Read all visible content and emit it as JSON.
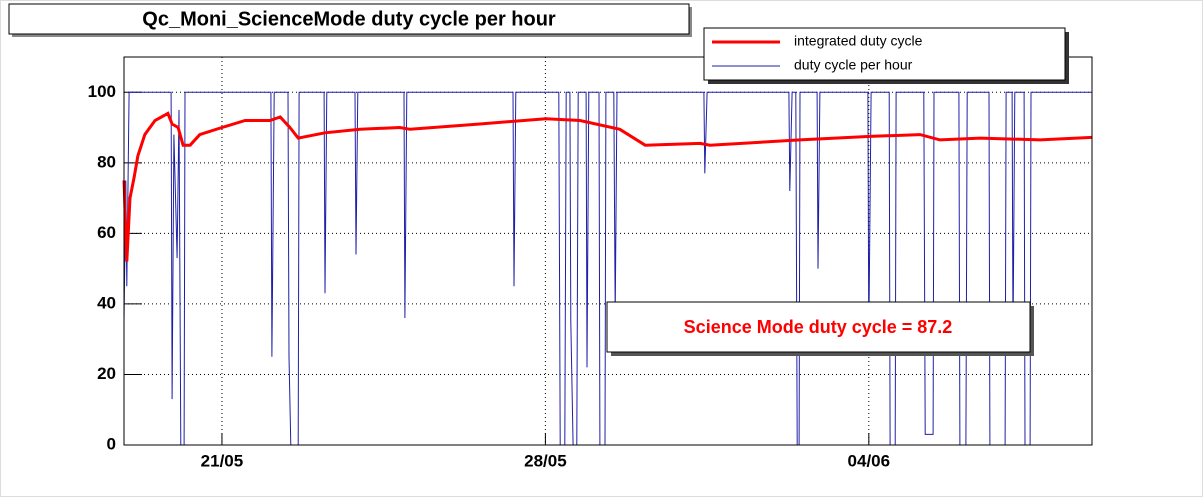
{
  "chart_data": {
    "type": "line",
    "title": "Qc_Moni_ScienceMode duty cycle per hour",
    "annotation": "Science Mode duty cycle = 87.2",
    "xlim": [
      18.88,
      39.83
    ],
    "xticks": [
      {
        "value": 21,
        "label": "21/05"
      },
      {
        "value": 28,
        "label": "28/05"
      },
      {
        "value": 35,
        "label": "04/06"
      }
    ],
    "ylim": [
      0,
      110
    ],
    "yticks": [
      0,
      20,
      40,
      60,
      80,
      100
    ],
    "grid": true,
    "legend": "top-right",
    "series": [
      {
        "name": "integrated duty cycle",
        "color": "#ff0000",
        "width": 3,
        "x": [
          18.88,
          18.94,
          19.01,
          19.1,
          19.18,
          19.33,
          19.55,
          19.83,
          19.92,
          20.05,
          20.16,
          20.31,
          20.52,
          21.0,
          21.5,
          22.04,
          22.26,
          22.47,
          22.65,
          23.23,
          23.99,
          24.85,
          25.07,
          26.58,
          28.01,
          28.75,
          29.61,
          30.16,
          31.35,
          31.56,
          33.51,
          35.03,
          36.11,
          36.54,
          37.41,
          38.71,
          39.83
        ],
        "values": [
          75,
          52,
          70,
          76,
          82,
          88,
          92,
          94,
          91,
          90,
          85,
          85,
          88,
          90,
          92,
          92,
          93,
          90,
          87,
          88.5,
          89.5,
          90,
          89.5,
          91,
          92.5,
          92,
          89.5,
          85,
          85.5,
          85,
          86.5,
          87.5,
          88,
          86.5,
          87,
          86.5,
          87.2
        ]
      },
      {
        "name": "duty cycle per hour",
        "color": "#1f1fa8",
        "width": 1,
        "x": [
          18.88,
          18.92,
          18.94,
          18.99,
          19.9,
          19.92,
          19.96,
          20.03,
          20.07,
          20.11,
          20.18,
          20.2,
          22.06,
          22.08,
          22.13,
          22.43,
          22.45,
          22.49,
          22.65,
          22.67,
          23.21,
          23.23,
          23.27,
          23.88,
          23.9,
          23.94,
          24.94,
          24.96,
          25.0,
          27.3,
          27.32,
          27.36,
          28.29,
          28.32,
          28.42,
          28.45,
          28.53,
          28.55,
          28.6,
          28.68,
          28.71,
          28.88,
          28.9,
          28.94,
          29.16,
          29.18,
          29.29,
          29.31,
          29.48,
          29.51,
          29.55,
          31.43,
          31.45,
          31.5,
          33.27,
          33.29,
          33.34,
          33.42,
          33.45,
          33.49,
          33.51,
          33.88,
          33.9,
          33.94,
          34.98,
          35.0,
          35.05,
          35.44,
          35.46,
          35.57,
          35.59,
          36.19,
          36.22,
          36.39,
          36.41,
          36.95,
          36.97,
          37.1,
          37.13,
          37.6,
          37.62,
          37.95,
          37.97,
          38.1,
          38.12,
          38.16,
          38.36,
          38.38,
          38.49,
          38.51,
          39.83
        ],
        "values": [
          35,
          75,
          45,
          100,
          100,
          13,
          88,
          53,
          95,
          0,
          0,
          100,
          100,
          25,
          100,
          100,
          25,
          0,
          0,
          100,
          100,
          43,
          100,
          100,
          54,
          100,
          100,
          36,
          100,
          100,
          45,
          100,
          100,
          0,
          0,
          100,
          100,
          35,
          0,
          0,
          100,
          100,
          22,
          100,
          100,
          0,
          0,
          100,
          100,
          37,
          100,
          100,
          77,
          100,
          100,
          72,
          100,
          100,
          0,
          0,
          100,
          100,
          50,
          100,
          100,
          30,
          100,
          100,
          0,
          0,
          100,
          100,
          3,
          3,
          100,
          100,
          0,
          0,
          100,
          100,
          0,
          0,
          100,
          100,
          30,
          100,
          100,
          0,
          0,
          100,
          100
        ]
      }
    ]
  }
}
